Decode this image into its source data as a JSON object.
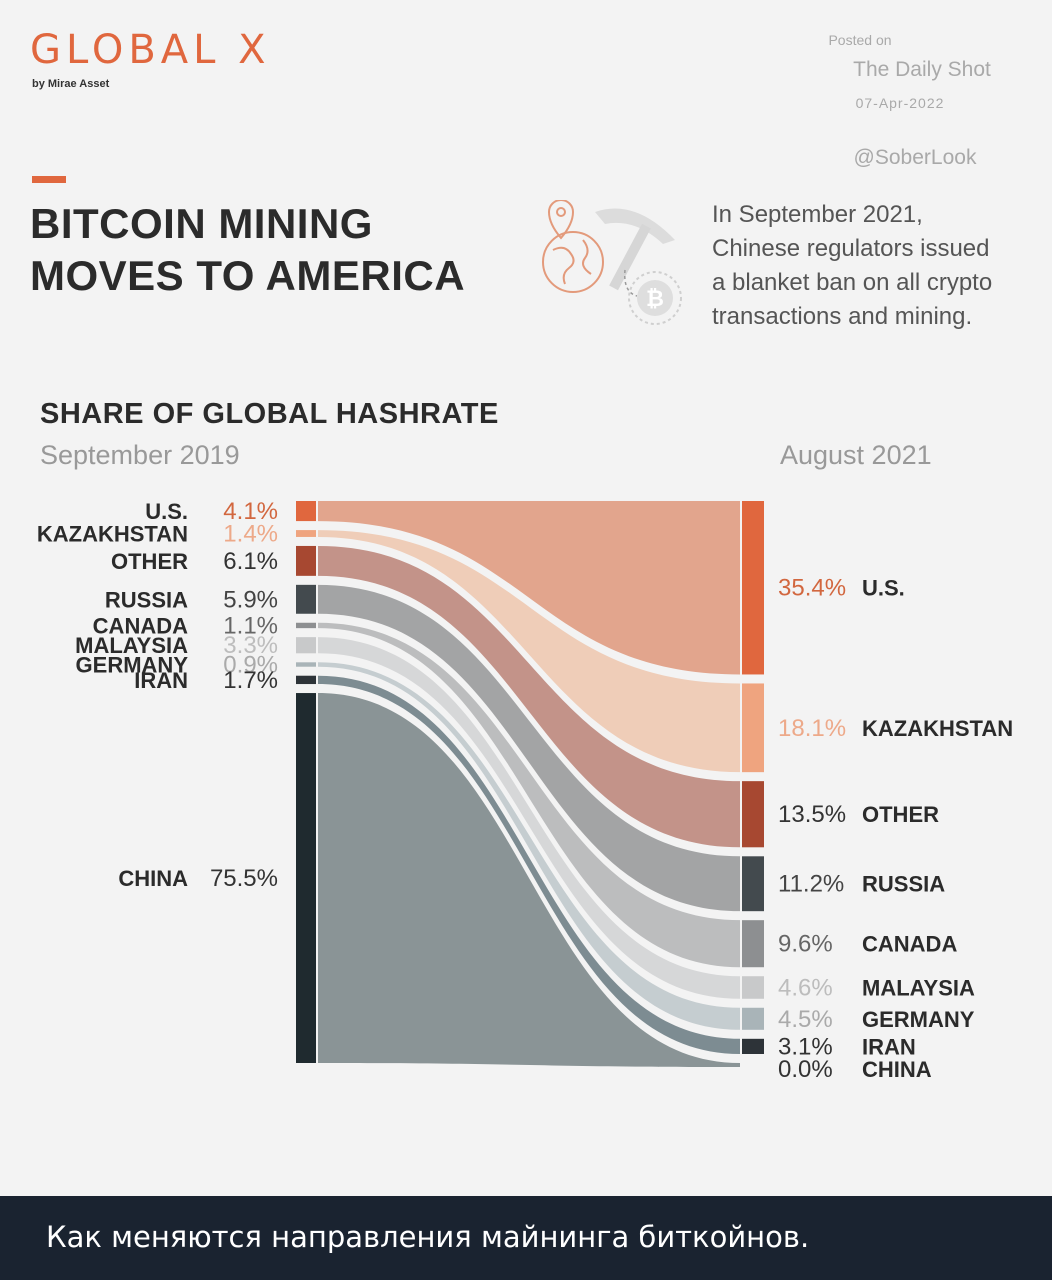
{
  "header": {
    "logo": "GLOBAL X",
    "logo_sub": "by Mirae Asset",
    "posted_on": "Posted on",
    "posted_source": "The Daily Shot",
    "posted_date": "07-Apr-2022",
    "posted_handle": "@SoberLook"
  },
  "title_lines": [
    "BITCOIN MINING",
    "MOVES TO AMERICA"
  ],
  "intro_lines": [
    "In September 2021,",
    "Chinese regulators issued",
    "a blanket ban on all crypto",
    "transactions and mining."
  ],
  "icons": {
    "globe": "globe-pin-icon",
    "pickaxe": "pickaxe-icon",
    "coin": "bitcoin-icon"
  },
  "chart_data": {
    "type": "sankey",
    "title": "SHARE OF GLOBAL HASHRATE",
    "left_period": "September 2019",
    "right_period": "August 2021",
    "left_order": [
      "U.S.",
      "KAZAKHSTAN",
      "OTHER",
      "RUSSIA",
      "CANADA",
      "MALAYSIA",
      "GERMANY",
      "IRAN",
      "CHINA"
    ],
    "right_order": [
      "U.S.",
      "KAZAKHSTAN",
      "OTHER",
      "RUSSIA",
      "CANADA",
      "MALAYSIA",
      "GERMANY",
      "IRAN",
      "CHINA"
    ],
    "series": [
      {
        "name": "U.S.",
        "left_label": "U.S.",
        "right_label": "U.S.",
        "left_pct": "4.1%",
        "right_pct": "35.4%",
        "left_value": 4.1,
        "right_value": 35.4,
        "bar_color": "#e0673e",
        "flow_color": "#e2a58d",
        "pct_color": "#d2673f"
      },
      {
        "name": "KAZAKHSTAN",
        "left_label": "KAZAKHSTAN",
        "right_label": "KAZAKHSTAN",
        "left_pct": "1.4%",
        "right_pct": "18.1%",
        "left_value": 1.4,
        "right_value": 18.1,
        "bar_color": "#efa47f",
        "flow_color": "#efcdb8",
        "pct_color": "#eda989"
      },
      {
        "name": "OTHER",
        "left_label": "OTHER",
        "right_label": "OTHER",
        "left_pct": "6.1%",
        "right_pct": "13.5%",
        "left_value": 6.1,
        "right_value": 13.5,
        "bar_color": "#a74831",
        "flow_color": "#c39389",
        "pct_color": "#333333"
      },
      {
        "name": "RUSSIA",
        "left_label": "RUSSIA",
        "right_label": "RUSSIA",
        "left_pct": "5.9%",
        "right_pct": "11.2%",
        "left_value": 5.9,
        "right_value": 11.2,
        "bar_color": "#434a4e",
        "flow_color": "#a3a4a5",
        "pct_color": "#444444"
      },
      {
        "name": "CANADA",
        "left_label": "CANADA",
        "right_label": "CANADA",
        "left_pct": "1.1%",
        "right_pct": "9.6%",
        "left_value": 1.1,
        "right_value": 9.6,
        "bar_color": "#8d8f91",
        "flow_color": "#bcbdbe",
        "pct_color": "#666666"
      },
      {
        "name": "MALAYSIA",
        "left_label": "MALAYSIA",
        "right_label": "MALAYSIA",
        "left_pct": "3.3%",
        "right_pct": "4.6%",
        "left_value": 3.3,
        "right_value": 4.6,
        "bar_color": "#c8c9ca",
        "flow_color": "#d6d7d8",
        "pct_color": "#bdbdbd"
      },
      {
        "name": "GERMANY",
        "left_label": "GERMANY",
        "right_label": "GERMANY",
        "left_pct": "0.9%",
        "right_pct": "4.5%",
        "left_value": 0.9,
        "right_value": 4.5,
        "bar_color": "#a9b4b8",
        "flow_color": "#c5cdd0",
        "pct_color": "#aaaaaa"
      },
      {
        "name": "IRAN",
        "left_label": "IRAN",
        "right_label": "IRAN",
        "left_pct": "1.7%",
        "right_pct": "3.1%",
        "left_value": 1.7,
        "right_value": 3.1,
        "bar_color": "#2d3338",
        "flow_color": "#7d8c92",
        "pct_color": "#333333"
      },
      {
        "name": "CHINA",
        "left_label": "CHINA",
        "right_label": "CHINA",
        "left_pct": "75.5%",
        "right_pct": "0.0%",
        "left_value": 75.5,
        "right_value": 0.0,
        "bar_color": "#1f2a2f",
        "flow_color": "#8a9496",
        "pct_color": "#333333"
      }
    ]
  },
  "caption": "Как меняются направления майнинга биткойнов."
}
